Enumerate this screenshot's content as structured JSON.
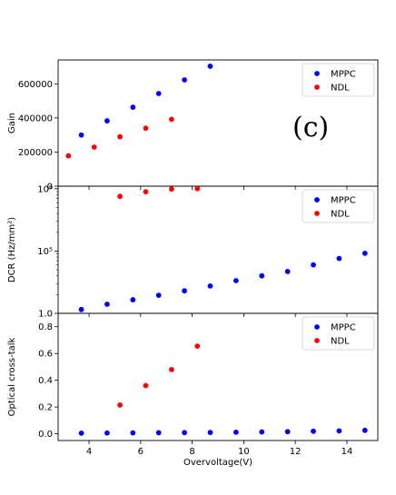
{
  "chart_data": [
    {
      "type": "scatter",
      "panel_label": "(c)",
      "xlabel": "",
      "ylabel": "Gain",
      "xlim": [
        2.8,
        15.2
      ],
      "ylim": [
        0,
        740000
      ],
      "yscale": "linear",
      "yticks": [
        0,
        200000,
        400000,
        600000
      ],
      "ytick_labels": [
        "0",
        "200000",
        "400000",
        "600000"
      ],
      "legend": "top-right",
      "grid": false,
      "series": [
        {
          "name": "MPPC",
          "color": "#0000ff",
          "x": [
            3.7,
            4.7,
            5.7,
            6.7,
            7.7,
            8.7
          ],
          "y": [
            300000,
            383000,
            463000,
            543000,
            623000,
            703000
          ]
        },
        {
          "name": "NDL",
          "color": "#ff0000",
          "x": [
            3.2,
            4.2,
            5.2,
            6.2,
            7.2
          ],
          "y": [
            178000,
            229000,
            290000,
            340000,
            392000
          ]
        }
      ]
    },
    {
      "type": "scatter",
      "xlabel": "",
      "ylabel": "DCR (Hz/mm²)",
      "xlim": [
        2.8,
        15.2
      ],
      "ylim": [
        10000,
        1100000
      ],
      "yscale": "log",
      "ytick_labels": [
        "1.0",
        "10⁵",
        "10⁶"
      ],
      "legend": "top-right",
      "grid": false,
      "series": [
        {
          "name": "MPPC",
          "color": "#0000ff",
          "x": [
            3.7,
            4.7,
            5.7,
            6.7,
            7.7,
            8.7,
            9.7,
            10.7,
            11.7,
            12.7,
            13.7,
            14.7
          ],
          "y": [
            11500,
            14000,
            16500,
            19500,
            23000,
            27500,
            33500,
            40000,
            47000,
            60000,
            76000,
            92000
          ]
        },
        {
          "name": "NDL",
          "color": "#ff0000",
          "x": [
            5.2,
            6.2,
            7.2,
            8.2
          ],
          "y": [
            755000,
            895000,
            990000,
            1005000
          ]
        }
      ]
    },
    {
      "type": "scatter",
      "xlabel": "Overvoltage(V)",
      "ylabel": "Optical cross-talk",
      "xlim": [
        2.8,
        15.2
      ],
      "ylim": [
        -0.05,
        0.9
      ],
      "yscale": "linear",
      "xticks": [
        4,
        6,
        8,
        10,
        12,
        14
      ],
      "xtick_labels": [
        "4",
        "6",
        "8",
        "10",
        "12",
        "14"
      ],
      "yticks": [
        0.0,
        0.2,
        0.4,
        0.6,
        0.8
      ],
      "ytick_labels": [
        "0.0",
        "0.2",
        "0.4",
        "0.6",
        "0.8"
      ],
      "legend": "top-right",
      "grid": false,
      "series": [
        {
          "name": "MPPC",
          "color": "#0000ff",
          "x": [
            3.7,
            4.7,
            5.7,
            6.7,
            7.7,
            8.7,
            9.7,
            10.7,
            11.7,
            12.7,
            13.7,
            14.7
          ],
          "y": [
            0.005,
            0.006,
            0.007,
            0.008,
            0.009,
            0.01,
            0.012,
            0.014,
            0.016,
            0.019,
            0.022,
            0.026
          ]
        },
        {
          "name": "NDL",
          "color": "#ff0000",
          "x": [
            5.2,
            6.2,
            7.2,
            8.2
          ],
          "y": [
            0.215,
            0.36,
            0.48,
            0.655
          ]
        }
      ]
    }
  ]
}
